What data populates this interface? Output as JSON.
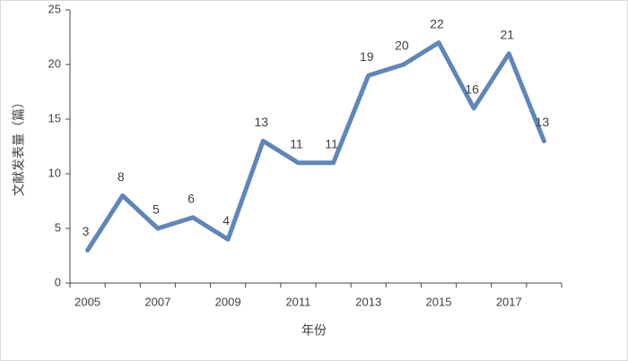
{
  "chart_data": {
    "type": "line",
    "x_label": "年份",
    "y_label": "文献发表量（篇）",
    "categories": [
      "2005",
      null,
      "2007",
      null,
      "2009",
      null,
      "2011",
      null,
      "2013",
      null,
      "2015",
      null,
      "2017",
      null
    ],
    "values": [
      3,
      8,
      5,
      6,
      4,
      13,
      11,
      11,
      19,
      20,
      22,
      16,
      21,
      13
    ],
    "color": "#5f86b8",
    "ylim": [
      0,
      25
    ],
    "yticks": [
      0,
      5,
      10,
      15,
      20,
      25
    ],
    "grid": false
  }
}
